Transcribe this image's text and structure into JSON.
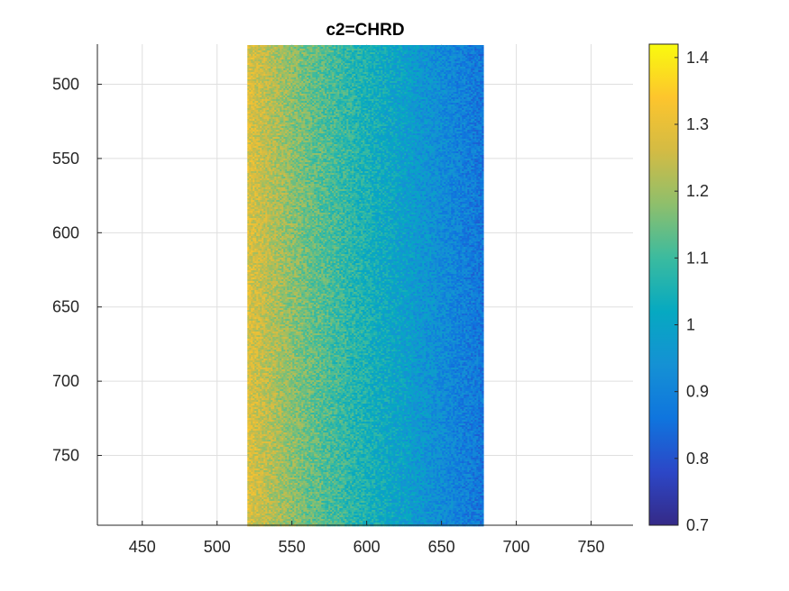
{
  "chart_data": {
    "type": "heatmap",
    "title": "c2=CHRD",
    "xlabel": "",
    "ylabel": "",
    "xlim": [
      420,
      778
    ],
    "ylim": [
      473,
      797
    ],
    "y_reversed": true,
    "xticks": [
      450,
      500,
      550,
      600,
      650,
      700,
      750
    ],
    "yticks": [
      500,
      550,
      600,
      650,
      700,
      750
    ],
    "grid": true,
    "data_extent": {
      "x": [
        519,
        677
      ],
      "y": [
        473,
        797
      ]
    },
    "value_model": {
      "description": "value decreases left to right across the data region",
      "x_points": [
        519,
        540,
        560,
        580,
        600,
        620,
        640,
        660,
        677
      ],
      "values": [
        1.28,
        1.21,
        1.15,
        1.1,
        1.05,
        1.0,
        0.95,
        0.9,
        0.87
      ],
      "noise": 0.06
    },
    "colorbar": {
      "min": 0.7,
      "max": 1.42,
      "ticks": [
        0.7,
        0.8,
        0.9,
        1,
        1.1,
        1.2,
        1.3,
        1.4
      ],
      "tick_labels": [
        "0.7",
        "0.8",
        "0.9",
        "1",
        "1.1",
        "1.2",
        "1.3",
        "1.4"
      ],
      "colormap": "parula",
      "colormap_stops": [
        "#352a87",
        "#2c47c7",
        "#0f75de",
        "#1591d4",
        "#06a9c1",
        "#3bbb9f",
        "#8ebf6c",
        "#d3bb44",
        "#fdc52d",
        "#f9fb0e"
      ]
    }
  }
}
